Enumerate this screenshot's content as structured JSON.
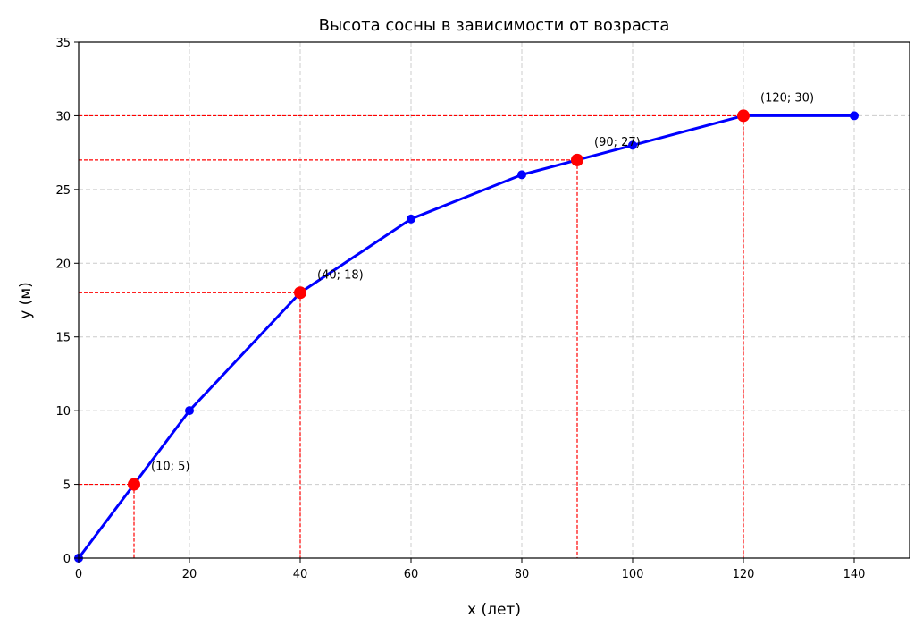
{
  "chart_data": {
    "type": "line",
    "title": "Высота сосны в зависимости от возраста",
    "xlabel": "x (лет)",
    "ylabel": "y (м)",
    "x": [
      0,
      20,
      40,
      60,
      80,
      100,
      120,
      140
    ],
    "values": [
      0,
      10,
      18,
      23,
      26,
      28,
      30,
      30
    ],
    "color": "#0000ff",
    "highlights": {
      "x": [
        10,
        40,
        90,
        120
      ],
      "values": [
        5,
        18,
        27,
        30
      ],
      "labels": [
        "(10; 5)",
        "(40; 18)",
        "(90; 27)",
        "(120; 30)"
      ],
      "color": "#ff0000"
    },
    "xlim": [
      0,
      150
    ],
    "ylim": [
      0,
      35
    ],
    "xticks": [
      0,
      20,
      40,
      60,
      80,
      100,
      120,
      140
    ],
    "yticks": [
      0,
      5,
      10,
      15,
      20,
      25,
      30,
      35
    ],
    "grid": true
  }
}
